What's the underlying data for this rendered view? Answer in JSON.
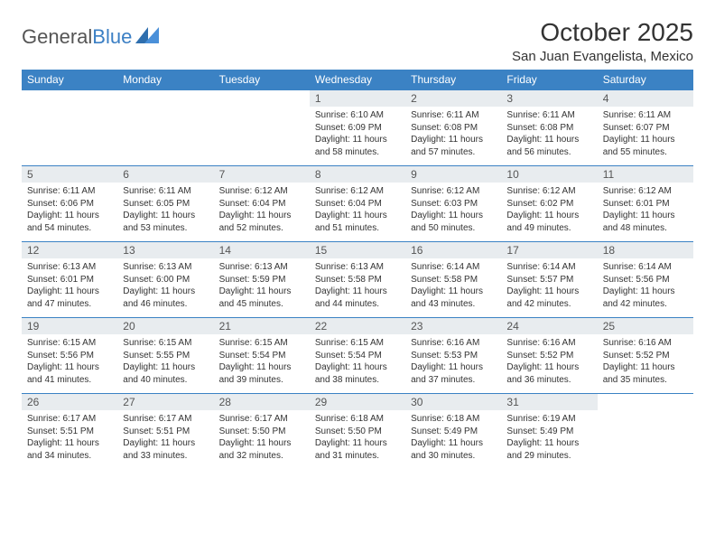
{
  "logo": {
    "part1": "General",
    "part2": "Blue"
  },
  "title": "October 2025",
  "location": "San Juan Evangelista, Mexico",
  "colors": {
    "header_bg": "#3b82c4",
    "header_text": "#ffffff",
    "daynum_bg": "#e8ecef",
    "text": "#333333",
    "logo_gray": "#555555",
    "logo_blue": "#3b7fc4"
  },
  "day_headers": [
    "Sunday",
    "Monday",
    "Tuesday",
    "Wednesday",
    "Thursday",
    "Friday",
    "Saturday"
  ],
  "weeks": [
    [
      null,
      null,
      null,
      {
        "n": "1",
        "sr": "6:10 AM",
        "ss": "6:09 PM",
        "dl": "11 hours and 58 minutes."
      },
      {
        "n": "2",
        "sr": "6:11 AM",
        "ss": "6:08 PM",
        "dl": "11 hours and 57 minutes."
      },
      {
        "n": "3",
        "sr": "6:11 AM",
        "ss": "6:08 PM",
        "dl": "11 hours and 56 minutes."
      },
      {
        "n": "4",
        "sr": "6:11 AM",
        "ss": "6:07 PM",
        "dl": "11 hours and 55 minutes."
      }
    ],
    [
      {
        "n": "5",
        "sr": "6:11 AM",
        "ss": "6:06 PM",
        "dl": "11 hours and 54 minutes."
      },
      {
        "n": "6",
        "sr": "6:11 AM",
        "ss": "6:05 PM",
        "dl": "11 hours and 53 minutes."
      },
      {
        "n": "7",
        "sr": "6:12 AM",
        "ss": "6:04 PM",
        "dl": "11 hours and 52 minutes."
      },
      {
        "n": "8",
        "sr": "6:12 AM",
        "ss": "6:04 PM",
        "dl": "11 hours and 51 minutes."
      },
      {
        "n": "9",
        "sr": "6:12 AM",
        "ss": "6:03 PM",
        "dl": "11 hours and 50 minutes."
      },
      {
        "n": "10",
        "sr": "6:12 AM",
        "ss": "6:02 PM",
        "dl": "11 hours and 49 minutes."
      },
      {
        "n": "11",
        "sr": "6:12 AM",
        "ss": "6:01 PM",
        "dl": "11 hours and 48 minutes."
      }
    ],
    [
      {
        "n": "12",
        "sr": "6:13 AM",
        "ss": "6:01 PM",
        "dl": "11 hours and 47 minutes."
      },
      {
        "n": "13",
        "sr": "6:13 AM",
        "ss": "6:00 PM",
        "dl": "11 hours and 46 minutes."
      },
      {
        "n": "14",
        "sr": "6:13 AM",
        "ss": "5:59 PM",
        "dl": "11 hours and 45 minutes."
      },
      {
        "n": "15",
        "sr": "6:13 AM",
        "ss": "5:58 PM",
        "dl": "11 hours and 44 minutes."
      },
      {
        "n": "16",
        "sr": "6:14 AM",
        "ss": "5:58 PM",
        "dl": "11 hours and 43 minutes."
      },
      {
        "n": "17",
        "sr": "6:14 AM",
        "ss": "5:57 PM",
        "dl": "11 hours and 42 minutes."
      },
      {
        "n": "18",
        "sr": "6:14 AM",
        "ss": "5:56 PM",
        "dl": "11 hours and 42 minutes."
      }
    ],
    [
      {
        "n": "19",
        "sr": "6:15 AM",
        "ss": "5:56 PM",
        "dl": "11 hours and 41 minutes."
      },
      {
        "n": "20",
        "sr": "6:15 AM",
        "ss": "5:55 PM",
        "dl": "11 hours and 40 minutes."
      },
      {
        "n": "21",
        "sr": "6:15 AM",
        "ss": "5:54 PM",
        "dl": "11 hours and 39 minutes."
      },
      {
        "n": "22",
        "sr": "6:15 AM",
        "ss": "5:54 PM",
        "dl": "11 hours and 38 minutes."
      },
      {
        "n": "23",
        "sr": "6:16 AM",
        "ss": "5:53 PM",
        "dl": "11 hours and 37 minutes."
      },
      {
        "n": "24",
        "sr": "6:16 AM",
        "ss": "5:52 PM",
        "dl": "11 hours and 36 minutes."
      },
      {
        "n": "25",
        "sr": "6:16 AM",
        "ss": "5:52 PM",
        "dl": "11 hours and 35 minutes."
      }
    ],
    [
      {
        "n": "26",
        "sr": "6:17 AM",
        "ss": "5:51 PM",
        "dl": "11 hours and 34 minutes."
      },
      {
        "n": "27",
        "sr": "6:17 AM",
        "ss": "5:51 PM",
        "dl": "11 hours and 33 minutes."
      },
      {
        "n": "28",
        "sr": "6:17 AM",
        "ss": "5:50 PM",
        "dl": "11 hours and 32 minutes."
      },
      {
        "n": "29",
        "sr": "6:18 AM",
        "ss": "5:50 PM",
        "dl": "11 hours and 31 minutes."
      },
      {
        "n": "30",
        "sr": "6:18 AM",
        "ss": "5:49 PM",
        "dl": "11 hours and 30 minutes."
      },
      {
        "n": "31",
        "sr": "6:19 AM",
        "ss": "5:49 PM",
        "dl": "11 hours and 29 minutes."
      },
      null
    ]
  ],
  "labels": {
    "sunrise": "Sunrise:",
    "sunset": "Sunset:",
    "daylight": "Daylight:"
  }
}
